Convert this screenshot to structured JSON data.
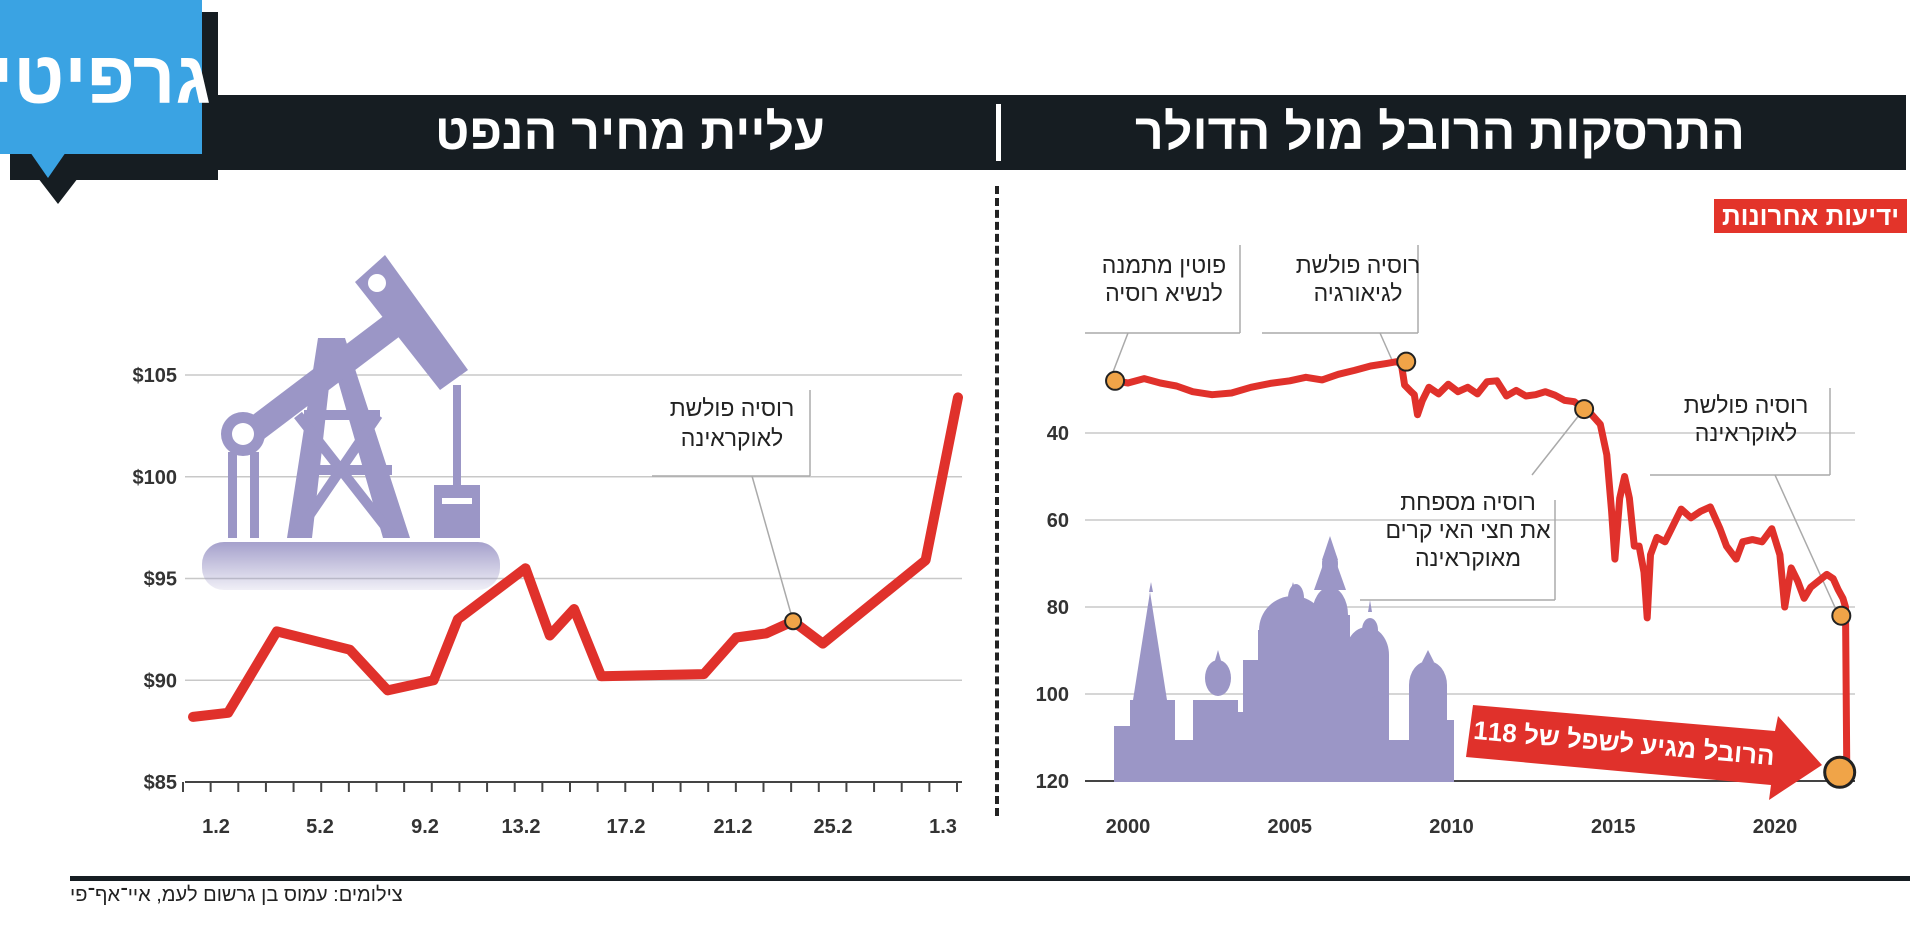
{
  "brand": {
    "logo_text": "גרפיטי",
    "source_logo": "ידיעות אחרונות"
  },
  "colors": {
    "header_bg": "#161d22",
    "series": "#e0312b",
    "grid": "#c8c8c8",
    "marker": "#f0a448",
    "silhouette": "#9b96c6",
    "logo_blue": "#3aa3e3",
    "source_red": "#e3342a"
  },
  "credit": "צילומים: עמוס בן גרשום לעמ, איי־אף־פי",
  "chart_data": [
    {
      "type": "line",
      "title": "התרסקות הרובל מול הדולר",
      "x_ticks": [
        "2000",
        "2005",
        "2010",
        "2015",
        "2020"
      ],
      "xlim": [
        2000,
        2022.2
      ],
      "y_ticks": [
        "40",
        "60",
        "80",
        "100",
        "120"
      ],
      "ylim": [
        14,
        120
      ],
      "y_inverted": true,
      "grid": true,
      "series": [
        {
          "values": [
            [
              1999.6,
              28
            ],
            [
              2000.0,
              28.5
            ],
            [
              2000.5,
              27.5
            ],
            [
              2001.0,
              28.5
            ],
            [
              2001.5,
              29.2
            ],
            [
              2002.0,
              30.5
            ],
            [
              2002.6,
              31.2
            ],
            [
              2003.2,
              30.8
            ],
            [
              2003.8,
              29.5
            ],
            [
              2004.4,
              28.6
            ],
            [
              2005.0,
              28.0
            ],
            [
              2005.5,
              27.2
            ],
            [
              2006.0,
              27.8
            ],
            [
              2006.5,
              26.5
            ],
            [
              2007.0,
              25.6
            ],
            [
              2007.5,
              24.6
            ],
            [
              2008.0,
              24.0
            ],
            [
              2008.3,
              23.6
            ],
            [
              2008.45,
              24.2
            ],
            [
              2008.55,
              29.0
            ],
            [
              2008.75,
              30.5
            ],
            [
              2008.85,
              31.2
            ],
            [
              2008.95,
              35.8
            ],
            [
              2009.1,
              32.5
            ],
            [
              2009.3,
              29.5
            ],
            [
              2009.6,
              31.0
            ],
            [
              2009.9,
              28.8
            ],
            [
              2010.2,
              30.5
            ],
            [
              2010.5,
              29.5
            ],
            [
              2010.8,
              31.0
            ],
            [
              2011.1,
              28.2
            ],
            [
              2011.4,
              28.0
            ],
            [
              2011.7,
              31.5
            ],
            [
              2012.0,
              30.2
            ],
            [
              2012.3,
              31.5
            ],
            [
              2012.6,
              31.2
            ],
            [
              2012.9,
              30.5
            ],
            [
              2013.2,
              31.3
            ],
            [
              2013.5,
              32.5
            ],
            [
              2013.8,
              32.8
            ],
            [
              2014.0,
              34.0
            ],
            [
              2014.3,
              35.5
            ],
            [
              2014.6,
              38.0
            ],
            [
              2014.8,
              45.0
            ],
            [
              2014.95,
              58.0
            ],
            [
              2015.05,
              69.0
            ],
            [
              2015.2,
              55.0
            ],
            [
              2015.35,
              50.0
            ],
            [
              2015.5,
              55.0
            ],
            [
              2015.65,
              66.0
            ],
            [
              2015.8,
              66.0
            ],
            [
              2015.95,
              72.0
            ],
            [
              2016.05,
              82.5
            ],
            [
              2016.15,
              68.0
            ],
            [
              2016.35,
              64.0
            ],
            [
              2016.6,
              65.0
            ],
            [
              2016.8,
              62.0
            ],
            [
              2017.1,
              57.5
            ],
            [
              2017.4,
              59.5
            ],
            [
              2017.7,
              58.0
            ],
            [
              2018.0,
              57.0
            ],
            [
              2018.3,
              62.0
            ],
            [
              2018.5,
              66.0
            ],
            [
              2018.8,
              69.0
            ],
            [
              2019.0,
              65.0
            ],
            [
              2019.3,
              64.5
            ],
            [
              2019.6,
              65.0
            ],
            [
              2019.9,
              62.0
            ],
            [
              2020.15,
              68.0
            ],
            [
              2020.3,
              80.0
            ],
            [
              2020.5,
              71.0
            ],
            [
              2020.7,
              74.0
            ],
            [
              2020.9,
              78.0
            ],
            [
              2021.1,
              75.5
            ],
            [
              2021.35,
              74.0
            ],
            [
              2021.6,
              72.5
            ],
            [
              2021.8,
              73.5
            ],
            [
              2021.95,
              76.0
            ],
            [
              2022.1,
              78.0
            ],
            [
              2022.18,
              80.0
            ],
            [
              2022.2,
              100.0
            ],
            [
              2022.22,
              118.0
            ]
          ]
        }
      ],
      "markers": [
        {
          "x": 1999.6,
          "y": 28,
          "label": "פוטין מתמנה\nלנשיא רוסיה"
        },
        {
          "x": 2008.6,
          "y": 23.6,
          "label": "רוסיה פולשת\nלגיאורגיה"
        },
        {
          "x": 2014.1,
          "y": 34.5,
          "label": "רוסיה מספחת\nאת חצי האי קרים\nמאוקראינה"
        },
        {
          "x": 2022.05,
          "y": 82,
          "label": "רוסיה פולשת\nלאוקראינה"
        },
        {
          "x": 2022.0,
          "y": 118,
          "label": ""
        }
      ],
      "callout": "הרובל מגיע לשפל של 118"
    },
    {
      "type": "line",
      "title": "עליית מחיר הנפט",
      "x_ticks": [
        "1.2",
        "5.2",
        "9.2",
        "13.2",
        "17.2",
        "21.2",
        "25.2",
        "1.3"
      ],
      "y_ticks": [
        "$105",
        "$100",
        "$95",
        "$90",
        "$85"
      ],
      "ylim": [
        85,
        105
      ],
      "grid": true,
      "series": [
        {
          "values": [
            [
              0.0,
              88.2
            ],
            [
              1.3,
              88.4
            ],
            [
              3.1,
              92.4
            ],
            [
              5.8,
              91.5
            ],
            [
              7.2,
              89.5
            ],
            [
              8.9,
              90.0
            ],
            [
              9.8,
              93.0
            ],
            [
              12.3,
              95.5
            ],
            [
              13.2,
              92.2
            ],
            [
              14.1,
              93.5
            ],
            [
              15.1,
              90.2
            ],
            [
              18.9,
              90.3
            ],
            [
              20.1,
              92.1
            ],
            [
              21.2,
              92.3
            ],
            [
              22.2,
              92.9
            ],
            [
              23.3,
              91.8
            ],
            [
              27.1,
              95.9
            ],
            [
              28.3,
              103.9
            ]
          ]
        }
      ],
      "markers": [
        {
          "x": 22.2,
          "y": 92.9,
          "label": "רוסיה פולשת\nלאוקראינה"
        }
      ]
    }
  ]
}
